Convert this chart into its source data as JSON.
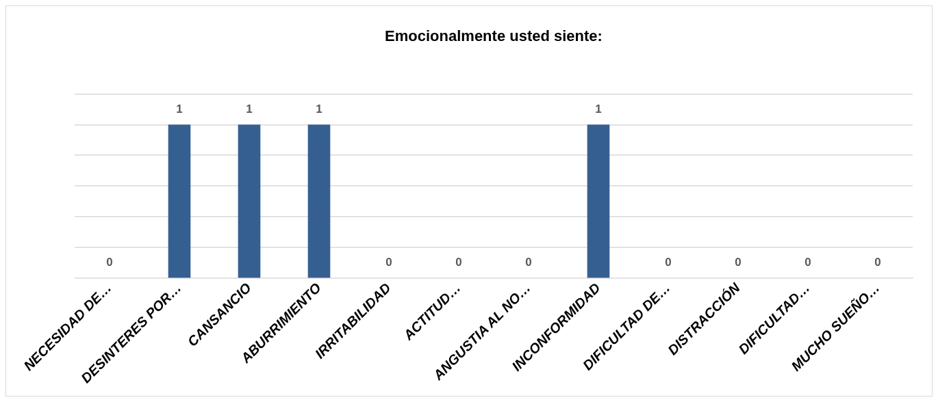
{
  "chart_data": {
    "type": "bar",
    "title": "Emocionalmente usted siente:",
    "categories": [
      "NECESIDAD DE…",
      "DESINTERES POR…",
      "CANSANCIO",
      "ABURRIMIENTO",
      "IRRITABILIDAD",
      "ACTITUD…",
      "ANGUSTIA AL NO…",
      "INCONFORMIDAD",
      "DIFICULTAD DE…",
      "DISTRACCIÓN",
      "DIFICULTAD…",
      "MUCHO SUEÑO…"
    ],
    "values": [
      0,
      1,
      1,
      1,
      0,
      0,
      0,
      1,
      0,
      0,
      0,
      0
    ],
    "color": "#365f91",
    "ylim": [
      0,
      1.2
    ],
    "yticks": [
      0,
      0.2,
      0.4,
      0.6,
      0.8,
      1,
      1.2
    ],
    "grid": "y",
    "legend": false,
    "tick_labels": "x",
    "data_labels": true
  }
}
